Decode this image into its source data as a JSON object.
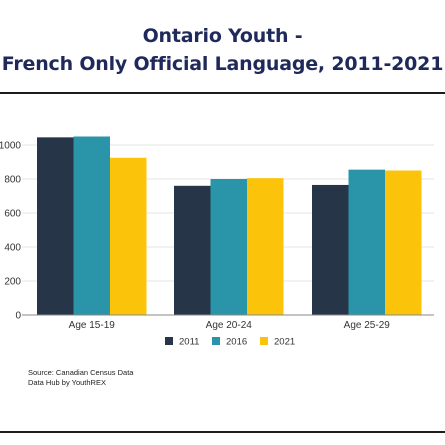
{
  "title_lines": [
    "Ontario Youth -",
    "French Only Official Language, 2011-2021"
  ],
  "colors": {
    "title": "#1f2a5a",
    "series": [
      "#263548",
      "#2a94a8",
      "#fcc30b"
    ],
    "rule": "#1c1c1c"
  },
  "source_lines": [
    "Source: Canadian Census Data",
    "Data Hub by YouthREX"
  ],
  "chart_data": {
    "type": "bar",
    "title": "Ontario Youth - French Only Official Language, 2011-2021",
    "categories": [
      "Age 15-19",
      "Age 20-24",
      "Age 25-29"
    ],
    "series": [
      {
        "name": "2011",
        "values": [
          1045,
          760,
          765
        ]
      },
      {
        "name": "2016",
        "values": [
          1050,
          800,
          855
        ]
      },
      {
        "name": "2021",
        "values": [
          925,
          805,
          850
        ]
      }
    ],
    "y_ticks": [
      "200",
      "400",
      "600",
      "800",
      "1000"
    ],
    "ylim": [
      0,
      1100
    ],
    "xlabel": "",
    "ylabel": "",
    "grid": true,
    "legend": "bottom"
  }
}
